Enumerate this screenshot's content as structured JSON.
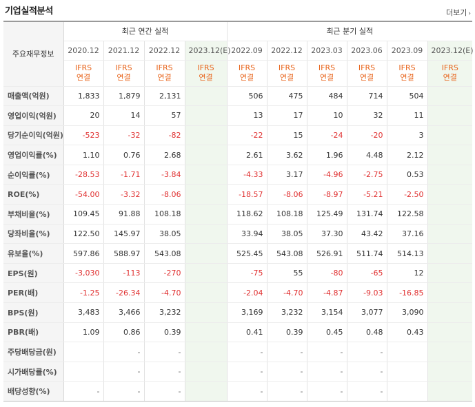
{
  "title": "기업실적분석",
  "more_label": "더보기",
  "corner_label": "주요재무정보",
  "groups": {
    "annual": "최근 연간 실적",
    "quarterly": "최근 분기 실적"
  },
  "annual_periods": [
    "2020.12",
    "2021.12",
    "2022.12",
    "2023.12(E)"
  ],
  "quarter_periods": [
    "2022.09",
    "2022.12",
    "2023.03",
    "2023.06",
    "2023.09",
    "2023.12(E)"
  ],
  "basis_top": "IFRS",
  "basis_bottom": "연결",
  "rows": [
    {
      "label": "매출액(억원)",
      "a": [
        "1,833",
        "1,879",
        "2,131",
        ""
      ],
      "q": [
        "506",
        "475",
        "484",
        "714",
        "504",
        ""
      ]
    },
    {
      "label": "영업이익(억원)",
      "a": [
        "20",
        "14",
        "57",
        ""
      ],
      "q": [
        "13",
        "17",
        "10",
        "32",
        "11",
        ""
      ]
    },
    {
      "label": "당기순이익(억원)",
      "a": [
        "-523",
        "-32",
        "-82",
        ""
      ],
      "q": [
        "-22",
        "15",
        "-24",
        "-20",
        "3",
        ""
      ]
    },
    {
      "label": "영업이익률(%)",
      "a": [
        "1.10",
        "0.76",
        "2.68",
        ""
      ],
      "q": [
        "2.61",
        "3.62",
        "1.96",
        "4.48",
        "2.12",
        ""
      ]
    },
    {
      "label": "순이익률(%)",
      "a": [
        "-28.53",
        "-1.71",
        "-3.84",
        ""
      ],
      "q": [
        "-4.33",
        "3.17",
        "-4.96",
        "-2.75",
        "0.53",
        ""
      ]
    },
    {
      "label": "ROE(%)",
      "a": [
        "-54.00",
        "-3.32",
        "-8.06",
        ""
      ],
      "q": [
        "-18.57",
        "-8.06",
        "-8.97",
        "-5.21",
        "-2.50",
        ""
      ]
    },
    {
      "label": "부채비율(%)",
      "a": [
        "109.45",
        "91.88",
        "108.18",
        ""
      ],
      "q": [
        "118.62",
        "108.18",
        "125.49",
        "131.74",
        "122.58",
        ""
      ]
    },
    {
      "label": "당좌비율(%)",
      "a": [
        "122.50",
        "145.97",
        "38.05",
        ""
      ],
      "q": [
        "33.94",
        "38.05",
        "37.30",
        "43.42",
        "37.16",
        ""
      ]
    },
    {
      "label": "유보율(%)",
      "a": [
        "597.86",
        "588.97",
        "543.08",
        ""
      ],
      "q": [
        "525.45",
        "543.08",
        "526.91",
        "511.74",
        "514.13",
        ""
      ]
    },
    {
      "label": "EPS(원)",
      "a": [
        "-3,030",
        "-113",
        "-270",
        ""
      ],
      "q": [
        "-75",
        "55",
        "-80",
        "-65",
        "12",
        ""
      ]
    },
    {
      "label": "PER(배)",
      "a": [
        "-1.25",
        "-26.34",
        "-4.70",
        ""
      ],
      "q": [
        "-2.04",
        "-4.70",
        "-4.87",
        "-9.03",
        "-16.85",
        ""
      ]
    },
    {
      "label": "BPS(원)",
      "a": [
        "3,483",
        "3,466",
        "3,232",
        ""
      ],
      "q": [
        "3,169",
        "3,232",
        "3,154",
        "3,077",
        "3,090",
        ""
      ]
    },
    {
      "label": "PBR(배)",
      "a": [
        "1.09",
        "0.86",
        "0.39",
        ""
      ],
      "q": [
        "0.41",
        "0.39",
        "0.45",
        "0.48",
        "0.43",
        ""
      ]
    },
    {
      "label": "주당배당금(원)",
      "a": [
        "",
        "-",
        "-",
        ""
      ],
      "q": [
        "-",
        "-",
        "-",
        "-",
        "",
        ""
      ]
    },
    {
      "label": "시가배당률(%)",
      "a": [
        "",
        "-",
        "-",
        ""
      ],
      "q": [
        "-",
        "-",
        "-",
        "-",
        "",
        ""
      ]
    },
    {
      "label": "배당성향(%)",
      "a": [
        "-",
        "-",
        "-",
        ""
      ],
      "q": [
        "-",
        "-",
        "-",
        "-",
        "",
        ""
      ]
    }
  ],
  "colors": {
    "negative": "#e03030",
    "basis": "#e8641b",
    "estimate_bg": "#f0f7ee",
    "estimate_text": "#2e8b3a"
  }
}
